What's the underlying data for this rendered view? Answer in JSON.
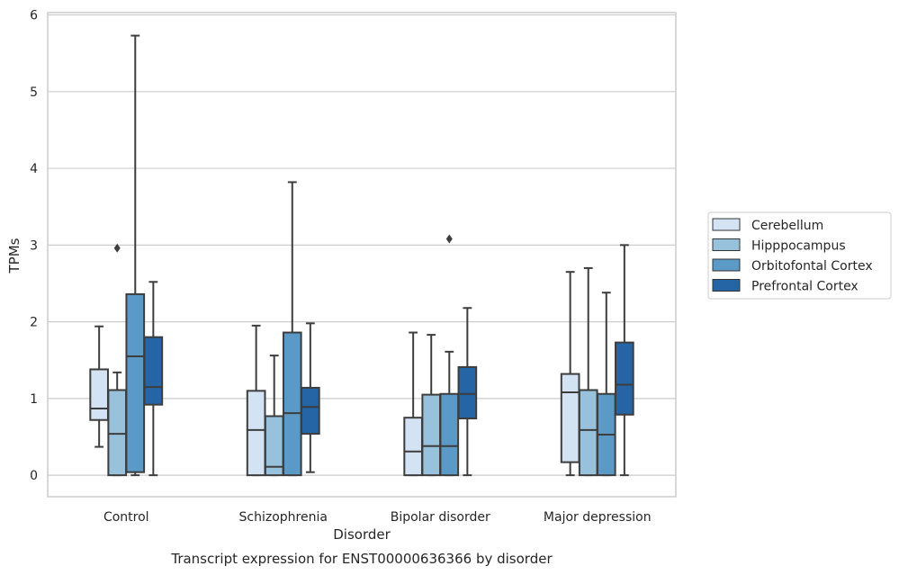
{
  "chart_data": {
    "type": "box",
    "title": "",
    "caption": "Transcript expression for ENST00000636366 by disorder",
    "xlabel": "Disorder",
    "ylabel": "TPMs",
    "ylim": [
      -0.28,
      6.03
    ],
    "yticks": [
      0,
      1,
      2,
      3,
      4,
      5,
      6
    ],
    "grid": "horizontal",
    "legend_position": "right",
    "categories": [
      "Control",
      "Schizophrenia",
      "Bipolar disorder",
      "Major depression"
    ],
    "series": [
      {
        "name": "Cerebellum",
        "color": "#d3e3f3",
        "boxes": [
          {
            "whislo": 0.37,
            "q1": 0.72,
            "med": 0.87,
            "q3": 1.38,
            "whishi": 1.94,
            "fliers": []
          },
          {
            "whislo": 0.0,
            "q1": 0.0,
            "med": 0.59,
            "q3": 1.1,
            "whishi": 1.95,
            "fliers": []
          },
          {
            "whislo": 0.0,
            "q1": 0.0,
            "med": 0.31,
            "q3": 0.75,
            "whishi": 1.86,
            "fliers": []
          },
          {
            "whislo": 0.0,
            "q1": 0.17,
            "med": 1.08,
            "q3": 1.32,
            "whishi": 2.65,
            "fliers": []
          }
        ]
      },
      {
        "name": "Hipppocampus",
        "color": "#98c2dc",
        "boxes": [
          {
            "whislo": 0.0,
            "q1": 0.0,
            "med": 0.54,
            "q3": 1.11,
            "whishi": 1.34,
            "fliers": [
              2.96
            ]
          },
          {
            "whislo": 0.0,
            "q1": 0.0,
            "med": 0.11,
            "q3": 0.77,
            "whishi": 1.56,
            "fliers": []
          },
          {
            "whislo": 0.0,
            "q1": 0.0,
            "med": 0.38,
            "q3": 1.05,
            "whishi": 1.83,
            "fliers": []
          },
          {
            "whislo": 0.0,
            "q1": 0.0,
            "med": 0.59,
            "q3": 1.11,
            "whishi": 2.7,
            "fliers": []
          }
        ]
      },
      {
        "name": "Orbitofontal Cortex",
        "color": "#5b9ac7",
        "boxes": [
          {
            "whislo": 0.0,
            "q1": 0.04,
            "med": 1.55,
            "q3": 2.36,
            "whishi": 5.73,
            "fliers": []
          },
          {
            "whislo": 0.0,
            "q1": 0.0,
            "med": 0.81,
            "q3": 1.86,
            "whishi": 3.82,
            "fliers": []
          },
          {
            "whislo": 0.0,
            "q1": 0.0,
            "med": 0.38,
            "q3": 1.06,
            "whishi": 1.61,
            "fliers": [
              3.08
            ]
          },
          {
            "whislo": 0.0,
            "q1": 0.0,
            "med": 0.53,
            "q3": 1.06,
            "whishi": 2.38,
            "fliers": []
          }
        ]
      },
      {
        "name": "Prefrontal Cortex",
        "color": "#2565a6",
        "boxes": [
          {
            "whislo": 0.0,
            "q1": 0.92,
            "med": 1.15,
            "q3": 1.8,
            "whishi": 2.52,
            "fliers": []
          },
          {
            "whislo": 0.04,
            "q1": 0.54,
            "med": 0.89,
            "q3": 1.14,
            "whishi": 1.98,
            "fliers": []
          },
          {
            "whislo": 0.0,
            "q1": 0.74,
            "med": 1.06,
            "q3": 1.41,
            "whishi": 2.18,
            "fliers": []
          },
          {
            "whislo": 0.0,
            "q1": 0.79,
            "med": 1.18,
            "q3": 1.73,
            "whishi": 3.0,
            "fliers": []
          }
        ]
      }
    ]
  }
}
